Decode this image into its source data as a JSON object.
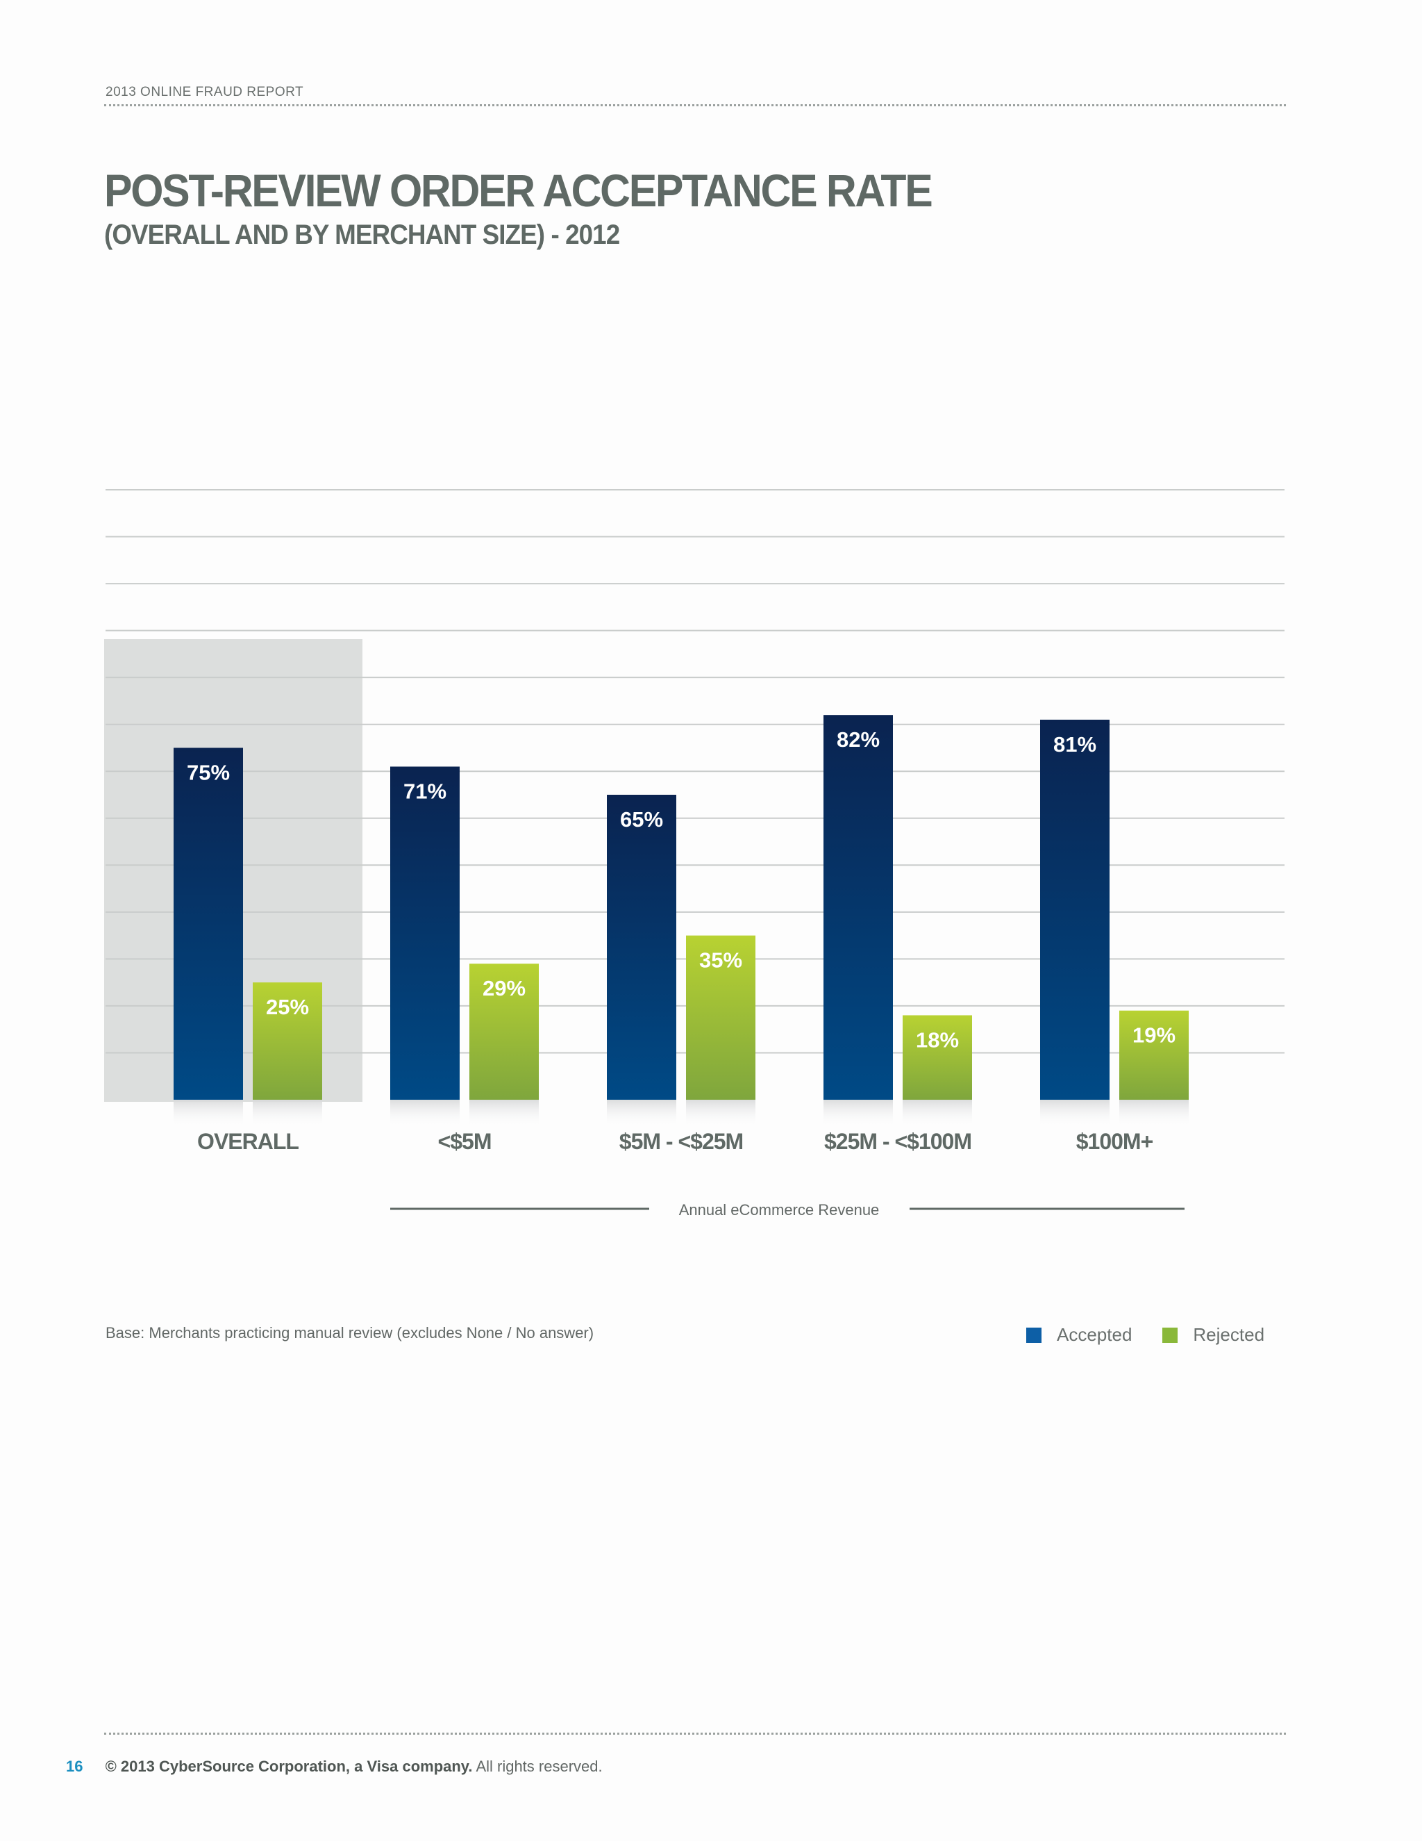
{
  "header": {
    "report_name": "2013 ONLINE FRAUD REPORT"
  },
  "title": "POST-REVIEW ORDER ACCEPTANCE RATE",
  "subtitle": "(OVERALL AND BY MERCHANT SIZE) - 2012",
  "colors": {
    "accepted_top": "#0a2350",
    "accepted_bottom": "#004a86",
    "rejected_top": "#b8d232",
    "rejected_bottom": "#7fa63d",
    "highlight_panel": "#dcdedd",
    "gridline": "#c9cccb",
    "axis_text": "#5f6965",
    "legend_accepted": "#0d5fa6",
    "legend_rejected": "#8ab83a",
    "page_number": "#1b8fc0"
  },
  "chart_data": {
    "type": "bar",
    "categories": [
      "OVERALL",
      "<$5M",
      "$5M - <$25M",
      "$25M - <$100M",
      "$100M+"
    ],
    "series": [
      {
        "name": "Accepted",
        "values": [
          75,
          71,
          65,
          82,
          81
        ]
      },
      {
        "name": "Rejected",
        "values": [
          25,
          29,
          35,
          18,
          19
        ]
      }
    ],
    "data_labels": {
      "Accepted": [
        "75%",
        "71%",
        "65%",
        "82%",
        "81%"
      ],
      "Rejected": [
        "25%",
        "29%",
        "35%",
        "18%",
        "19%"
      ]
    },
    "ylim": [
      0,
      130
    ],
    "grid": true,
    "highlighted_category": "OVERALL",
    "axis_group_label": "Annual eCommerce Revenue",
    "legend_position": "bottom-right"
  },
  "base_note": "Base: Merchants practicing manual review (excludes None / No answer)",
  "legend": {
    "accepted": "Accepted",
    "rejected": "Rejected"
  },
  "footer": {
    "page_number": "16",
    "copyright": "© 2013 CyberSource Corporation, a Visa company.",
    "rights": "All rights reserved."
  }
}
